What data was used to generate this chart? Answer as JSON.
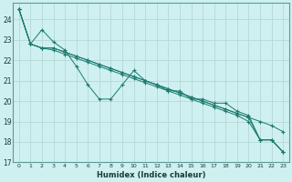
{
  "xlabel": "Humidex (Indice chaleur)",
  "background_color": "#cff0f0",
  "grid_color": "#b8d8d8",
  "line_color": "#1a7a6e",
  "xlim": [
    -0.5,
    23.5
  ],
  "ylim": [
    17,
    24.8
  ],
  "yticks": [
    17,
    18,
    19,
    20,
    21,
    22,
    23,
    24
  ],
  "xticks": [
    0,
    1,
    2,
    3,
    4,
    5,
    6,
    7,
    8,
    9,
    10,
    11,
    12,
    13,
    14,
    15,
    16,
    17,
    18,
    19,
    20,
    21,
    22,
    23
  ],
  "s1": [
    24.5,
    22.8,
    23.5,
    22.9,
    22.5,
    21.7,
    20.8,
    20.1,
    20.1,
    20.8,
    21.5,
    21.0,
    20.8,
    20.5,
    20.5,
    20.1,
    20.1,
    19.9,
    19.9,
    19.5,
    19.3,
    18.1,
    18.1,
    17.5
  ],
  "s2": [
    24.5,
    22.8,
    22.6,
    22.6,
    22.4,
    22.2,
    22.0,
    21.8,
    21.6,
    21.4,
    21.2,
    21.0,
    20.8,
    20.6,
    20.4,
    20.2,
    20.0,
    19.8,
    19.6,
    19.4,
    19.2,
    19.0,
    18.8,
    18.5
  ],
  "s3": [
    24.5,
    22.8,
    22.6,
    22.6,
    22.4,
    22.2,
    22.0,
    21.8,
    21.6,
    21.4,
    21.2,
    21.0,
    20.8,
    20.6,
    20.4,
    20.2,
    20.0,
    19.8,
    19.6,
    19.4,
    19.2,
    18.1,
    18.1,
    17.5
  ],
  "s4": [
    24.5,
    22.8,
    22.6,
    22.5,
    22.3,
    22.1,
    21.9,
    21.7,
    21.5,
    21.3,
    21.1,
    20.9,
    20.7,
    20.5,
    20.3,
    20.1,
    19.9,
    19.7,
    19.5,
    19.3,
    19.0,
    18.1,
    18.1,
    17.5
  ]
}
